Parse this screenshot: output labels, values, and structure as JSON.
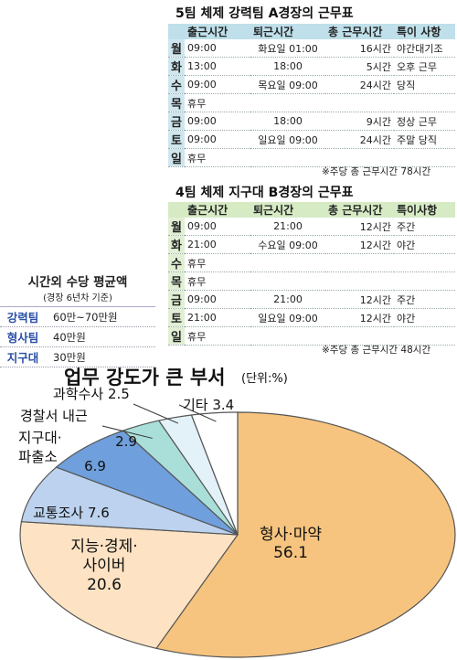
{
  "tableA": {
    "title": "5팀 체제 강력팀 A경장의 근무표",
    "headers": [
      "출근시간",
      "퇴근시간",
      "총 근무시간",
      "특이 사항"
    ],
    "rows": [
      {
        "day": "월",
        "in": "09:00",
        "out": "화요일 01:00",
        "total": "16시간",
        "note": "야간대기조"
      },
      {
        "day": "화",
        "in": "13:00",
        "out": "18:00",
        "total": "5시간",
        "note": "오후 근무"
      },
      {
        "day": "수",
        "in": "09:00",
        "out": "목요일 09:00",
        "total": "24시간",
        "note": "당직"
      },
      {
        "day": "목",
        "in": "휴무",
        "out": "",
        "total": "",
        "note": ""
      },
      {
        "day": "금",
        "in": "09:00",
        "out": "18:00",
        "total": "9시간",
        "note": "정상 근무"
      },
      {
        "day": "토",
        "in": "09:00",
        "out": "일요일 09:00",
        "total": "24시간",
        "note": "주말 당직"
      },
      {
        "day": "일",
        "in": "휴무",
        "out": "",
        "total": "",
        "note": ""
      }
    ],
    "footnote": "※주당 총 근무시간 78시간"
  },
  "tableB": {
    "title": "4팀 체제 지구대 B경장의 근무표",
    "headers": [
      "출근시간",
      "퇴근시간",
      "총 근무시간",
      "특이사항"
    ],
    "rows": [
      {
        "day": "월",
        "in": "09:00",
        "out": "21:00",
        "total": "12시간",
        "note": "주간"
      },
      {
        "day": "화",
        "in": "21:00",
        "out": "수요일 09:00",
        "total": "12시간",
        "note": "야간"
      },
      {
        "day": "수",
        "in": "휴무",
        "out": "",
        "total": "",
        "note": ""
      },
      {
        "day": "목",
        "in": "휴무",
        "out": "",
        "total": "",
        "note": ""
      },
      {
        "day": "금",
        "in": "09:00",
        "out": "21:00",
        "total": "12시간",
        "note": "주간"
      },
      {
        "day": "토",
        "in": "21:00",
        "out": "일요일 09:00",
        "total": "12시간",
        "note": "야간"
      },
      {
        "day": "일",
        "in": "휴무",
        "out": "",
        "total": "",
        "note": ""
      }
    ],
    "footnote": "※주당 총 근무시간 48시간"
  },
  "allowance": {
    "title": "시간외 수당 평균액",
    "subtitle": "(경장 6년차 기준)",
    "rows": [
      {
        "team": "강력팀",
        "amount": "60만~70만원"
      },
      {
        "team": "형사팀",
        "amount": "40만원"
      },
      {
        "team": "지구대",
        "amount": "30만원"
      }
    ]
  },
  "chart_data": {
    "type": "pie",
    "title": "업무 강도가 큰 부서",
    "unit": "(단위:%)",
    "slices": [
      {
        "name": "형사·마약",
        "value": 56.1,
        "color": "#f6c47f"
      },
      {
        "name": "지능·경제·사이버",
        "value": 20.6,
        "color": "#fde3c3"
      },
      {
        "name": "교통조사",
        "value": 7.6,
        "color": "#bcd2ee"
      },
      {
        "name": "지구대·파출소",
        "value": 6.9,
        "color": "#6f9fdc"
      },
      {
        "name": "경찰서 내근",
        "value": 2.9,
        "color": "#a9dfd8"
      },
      {
        "name": "과학수사",
        "value": 2.5,
        "color": "#e3f2f8"
      },
      {
        "name": "기타",
        "value": 3.4,
        "color": "#ffffff"
      }
    ],
    "labels": [
      {
        "slice": 0,
        "lines": [
          "형사·마약",
          "56.1"
        ]
      },
      {
        "slice": 1,
        "lines": [
          "지능·경제·",
          "사이버",
          "20.6"
        ]
      },
      {
        "slice": 2,
        "lines": [
          "교통조사 7.6"
        ]
      },
      {
        "slice": 3,
        "lines": [
          "지구대·",
          "파출소"
        ]
      },
      {
        "slice": 3,
        "lines": [
          "6.9"
        ]
      },
      {
        "slice": 4,
        "lines": [
          "경찰서 내근"
        ]
      },
      {
        "slice": 4,
        "lines": [
          "2.9"
        ]
      },
      {
        "slice": 5,
        "lines": [
          "과학수사 2.5"
        ]
      },
      {
        "slice": 6,
        "lines": [
          "기타 3.4"
        ]
      }
    ]
  }
}
